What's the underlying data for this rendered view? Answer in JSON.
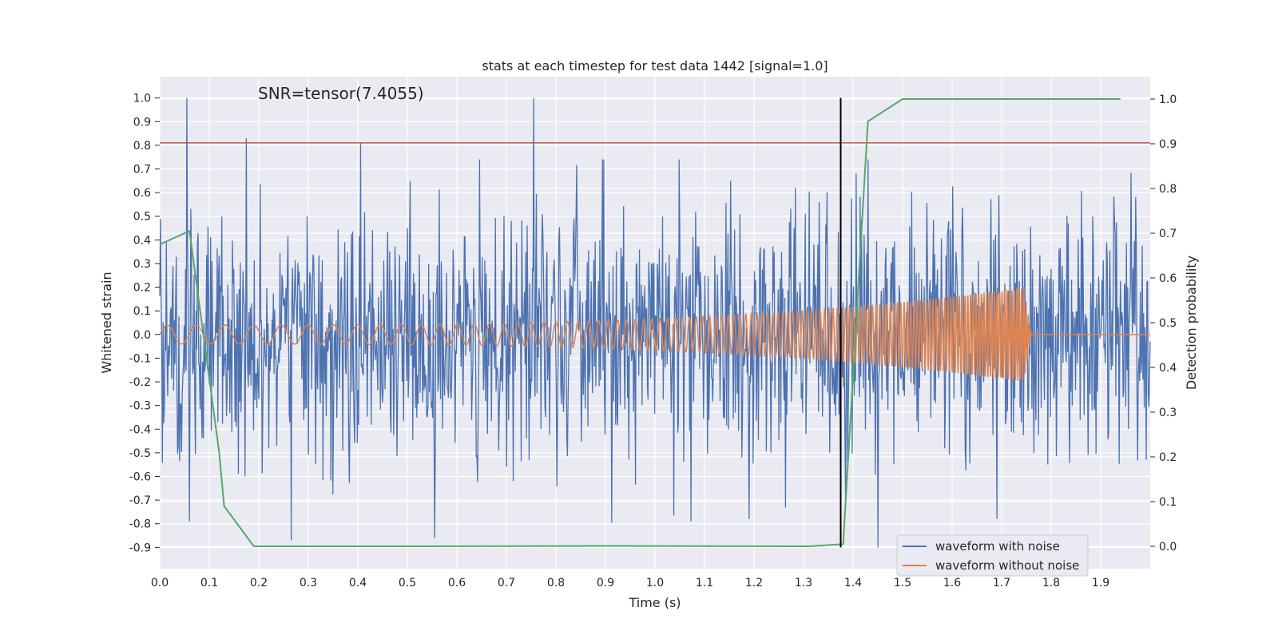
{
  "chart_data": {
    "type": "line",
    "title": "stats at each timestep for test data 1442 [signal=1.0]",
    "annotation": "SNR=tensor(7.4055)",
    "xlabel": "Time (s)",
    "ylabel": "Whitened strain",
    "ylabel_right": "Detection probability",
    "xlim": [
      0.0,
      2.0
    ],
    "ylim": [
      -0.99,
      1.09
    ],
    "ylim_right": [
      -0.05,
      1.05
    ],
    "x_ticks": [
      "0.0",
      "0.1",
      "0.2",
      "0.3",
      "0.4",
      "0.5",
      "0.6",
      "0.7",
      "0.8",
      "0.9",
      "1.0",
      "1.1",
      "1.2",
      "1.3",
      "1.4",
      "1.5",
      "1.6",
      "1.7",
      "1.8",
      "1.9"
    ],
    "y_ticks": [
      "1.0",
      "0.9",
      "0.8",
      "0.7",
      "0.6",
      "0.5",
      "0.4",
      "0.3",
      "0.2",
      "0.1",
      "0.0",
      "-0.1",
      "-0.2",
      "-0.3",
      "-0.4",
      "-0.5",
      "-0.6",
      "-0.7",
      "-0.8",
      "-0.9"
    ],
    "y_ticks_right": [
      "1.0",
      "0.9",
      "0.8",
      "0.7",
      "0.6",
      "0.5",
      "0.4",
      "0.3",
      "0.2",
      "0.1",
      "0.0"
    ],
    "grid": true,
    "legend_position": "bottom-right",
    "series": [
      {
        "name": "waveform with noise",
        "color": "#4c72b0",
        "axis": "left",
        "kind": "noise",
        "noise_sigma": 0.27,
        "sample_count": 1500,
        "peaks": [
          [
            0.055,
            1.0
          ],
          [
            0.755,
            1.0
          ],
          [
            0.175,
            0.83
          ],
          [
            0.405,
            0.81
          ],
          [
            1.45,
            -0.9
          ],
          [
            0.265,
            -0.87
          ],
          [
            0.555,
            -0.86
          ],
          [
            1.19,
            -0.78
          ],
          [
            1.69,
            -0.78
          ],
          [
            0.06,
            -0.79
          ],
          [
            1.43,
            0.74
          ]
        ]
      },
      {
        "name": "waveform without noise",
        "color": "#dd8452",
        "axis": "left",
        "kind": "chirp",
        "t_merge": 1.745,
        "amp_start": 0.04,
        "amp_peak": 0.2,
        "freq_start": 17,
        "freq_end": 210
      },
      {
        "name": "detection probability",
        "color": "#55a868",
        "axis": "right",
        "kind": "line",
        "x": [
          0.0,
          0.06,
          0.12,
          0.13,
          0.19,
          0.5,
          0.9,
          1.31,
          1.38,
          1.43,
          1.5,
          1.94
        ],
        "y": [
          0.675,
          0.705,
          0.21,
          0.09,
          0.0,
          0.0,
          0.001,
          0.0,
          0.005,
          0.95,
          1.0,
          1.0
        ]
      }
    ],
    "threshold_line": {
      "y": 0.81,
      "color": "#c44e52"
    },
    "marker_line": {
      "x": 1.375,
      "y_from": -0.9,
      "y_to": 1.0,
      "color": "#000000"
    }
  }
}
